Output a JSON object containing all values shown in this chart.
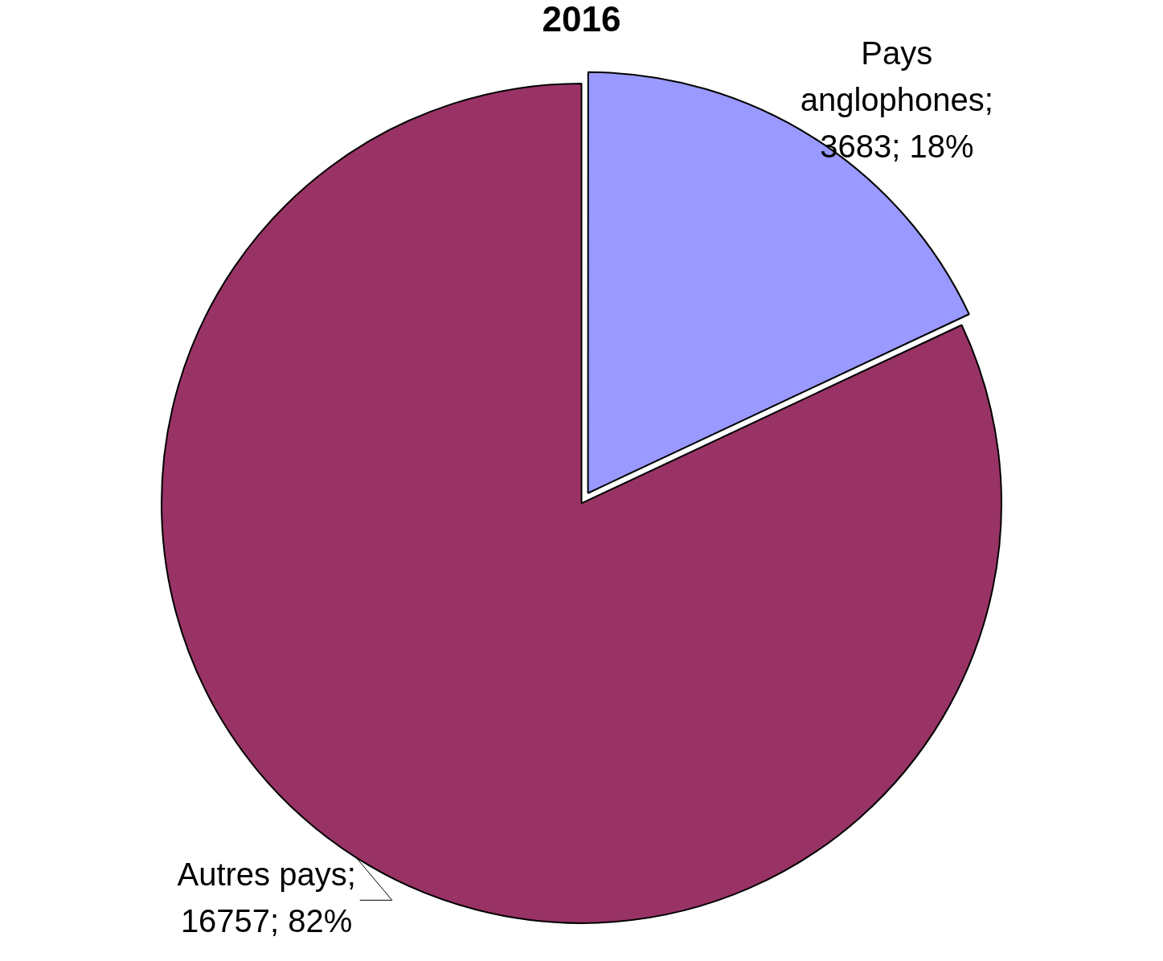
{
  "chart_data": {
    "type": "pie",
    "title": "2016",
    "categories": [
      "Pays anglophones",
      "Autres pays"
    ],
    "values": [
      3683,
      16757
    ],
    "colors": [
      "#9999ff",
      "#993366"
    ],
    "value_labels": [
      "; 3683; 18%",
      "; 16757; 82%"
    ],
    "legend": false
  }
}
